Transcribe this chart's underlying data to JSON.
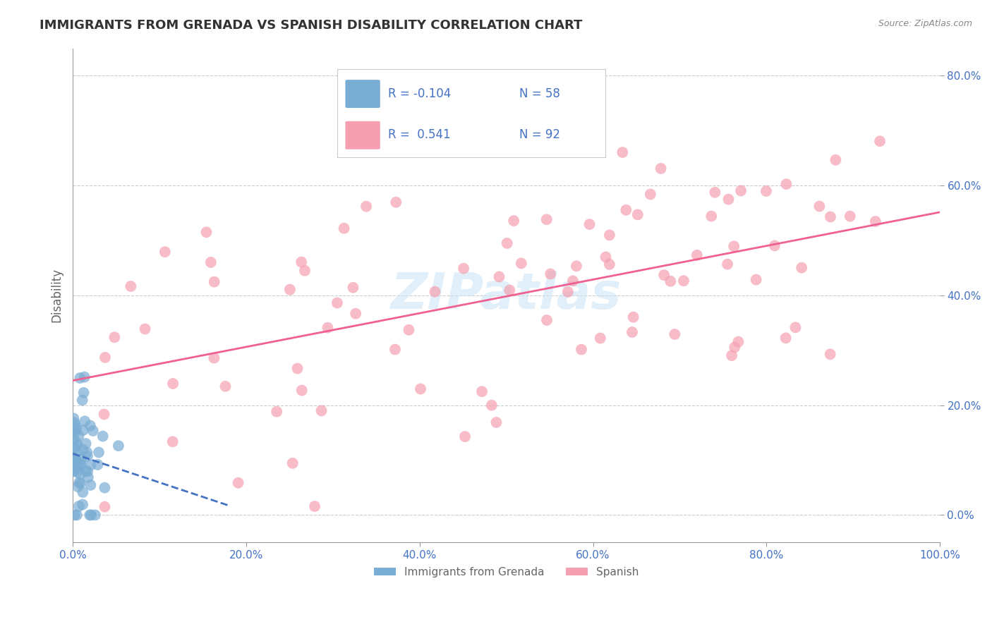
{
  "title": "IMMIGRANTS FROM GRENADA VS SPANISH DISABILITY CORRELATION CHART",
  "source_text": "Source: ZipAtlas.com",
  "ylabel": "Disability",
  "x_min": 0.0,
  "x_max": 1.0,
  "y_min": -0.05,
  "y_max": 0.85,
  "y_ticks": [
    0.0,
    0.2,
    0.4,
    0.6,
    0.8
  ],
  "y_tick_labels": [
    "0.0%",
    "20.0%",
    "40.0%",
    "60.0%",
    "80.0%"
  ],
  "x_ticks": [
    0.0,
    0.2,
    0.4,
    0.6,
    0.8,
    1.0
  ],
  "x_tick_labels": [
    "0.0%",
    "20.0%",
    "40.0%",
    "60.0%",
    "80.0%",
    "100.0%"
  ],
  "grid_color": "#cccccc",
  "background_color": "#ffffff",
  "blue_color": "#7aadd4",
  "pink_color": "#f5a0b0",
  "blue_line_color": "#4472c4",
  "pink_line_color": "#f06090",
  "watermark_text": "ZIPatlas",
  "legend_R_blue": "-0.104",
  "legend_N_blue": "58",
  "legend_R_pink": "0.541",
  "legend_N_pink": "92",
  "legend_label_blue": "Immigrants from Grenada",
  "legend_label_pink": "Spanish",
  "title_color": "#333333",
  "axis_label_color": "#666666",
  "tick_label_color": "#4472c4",
  "legend_text_color_RN": "#4472c4",
  "legend_text_color_label": "#555555"
}
